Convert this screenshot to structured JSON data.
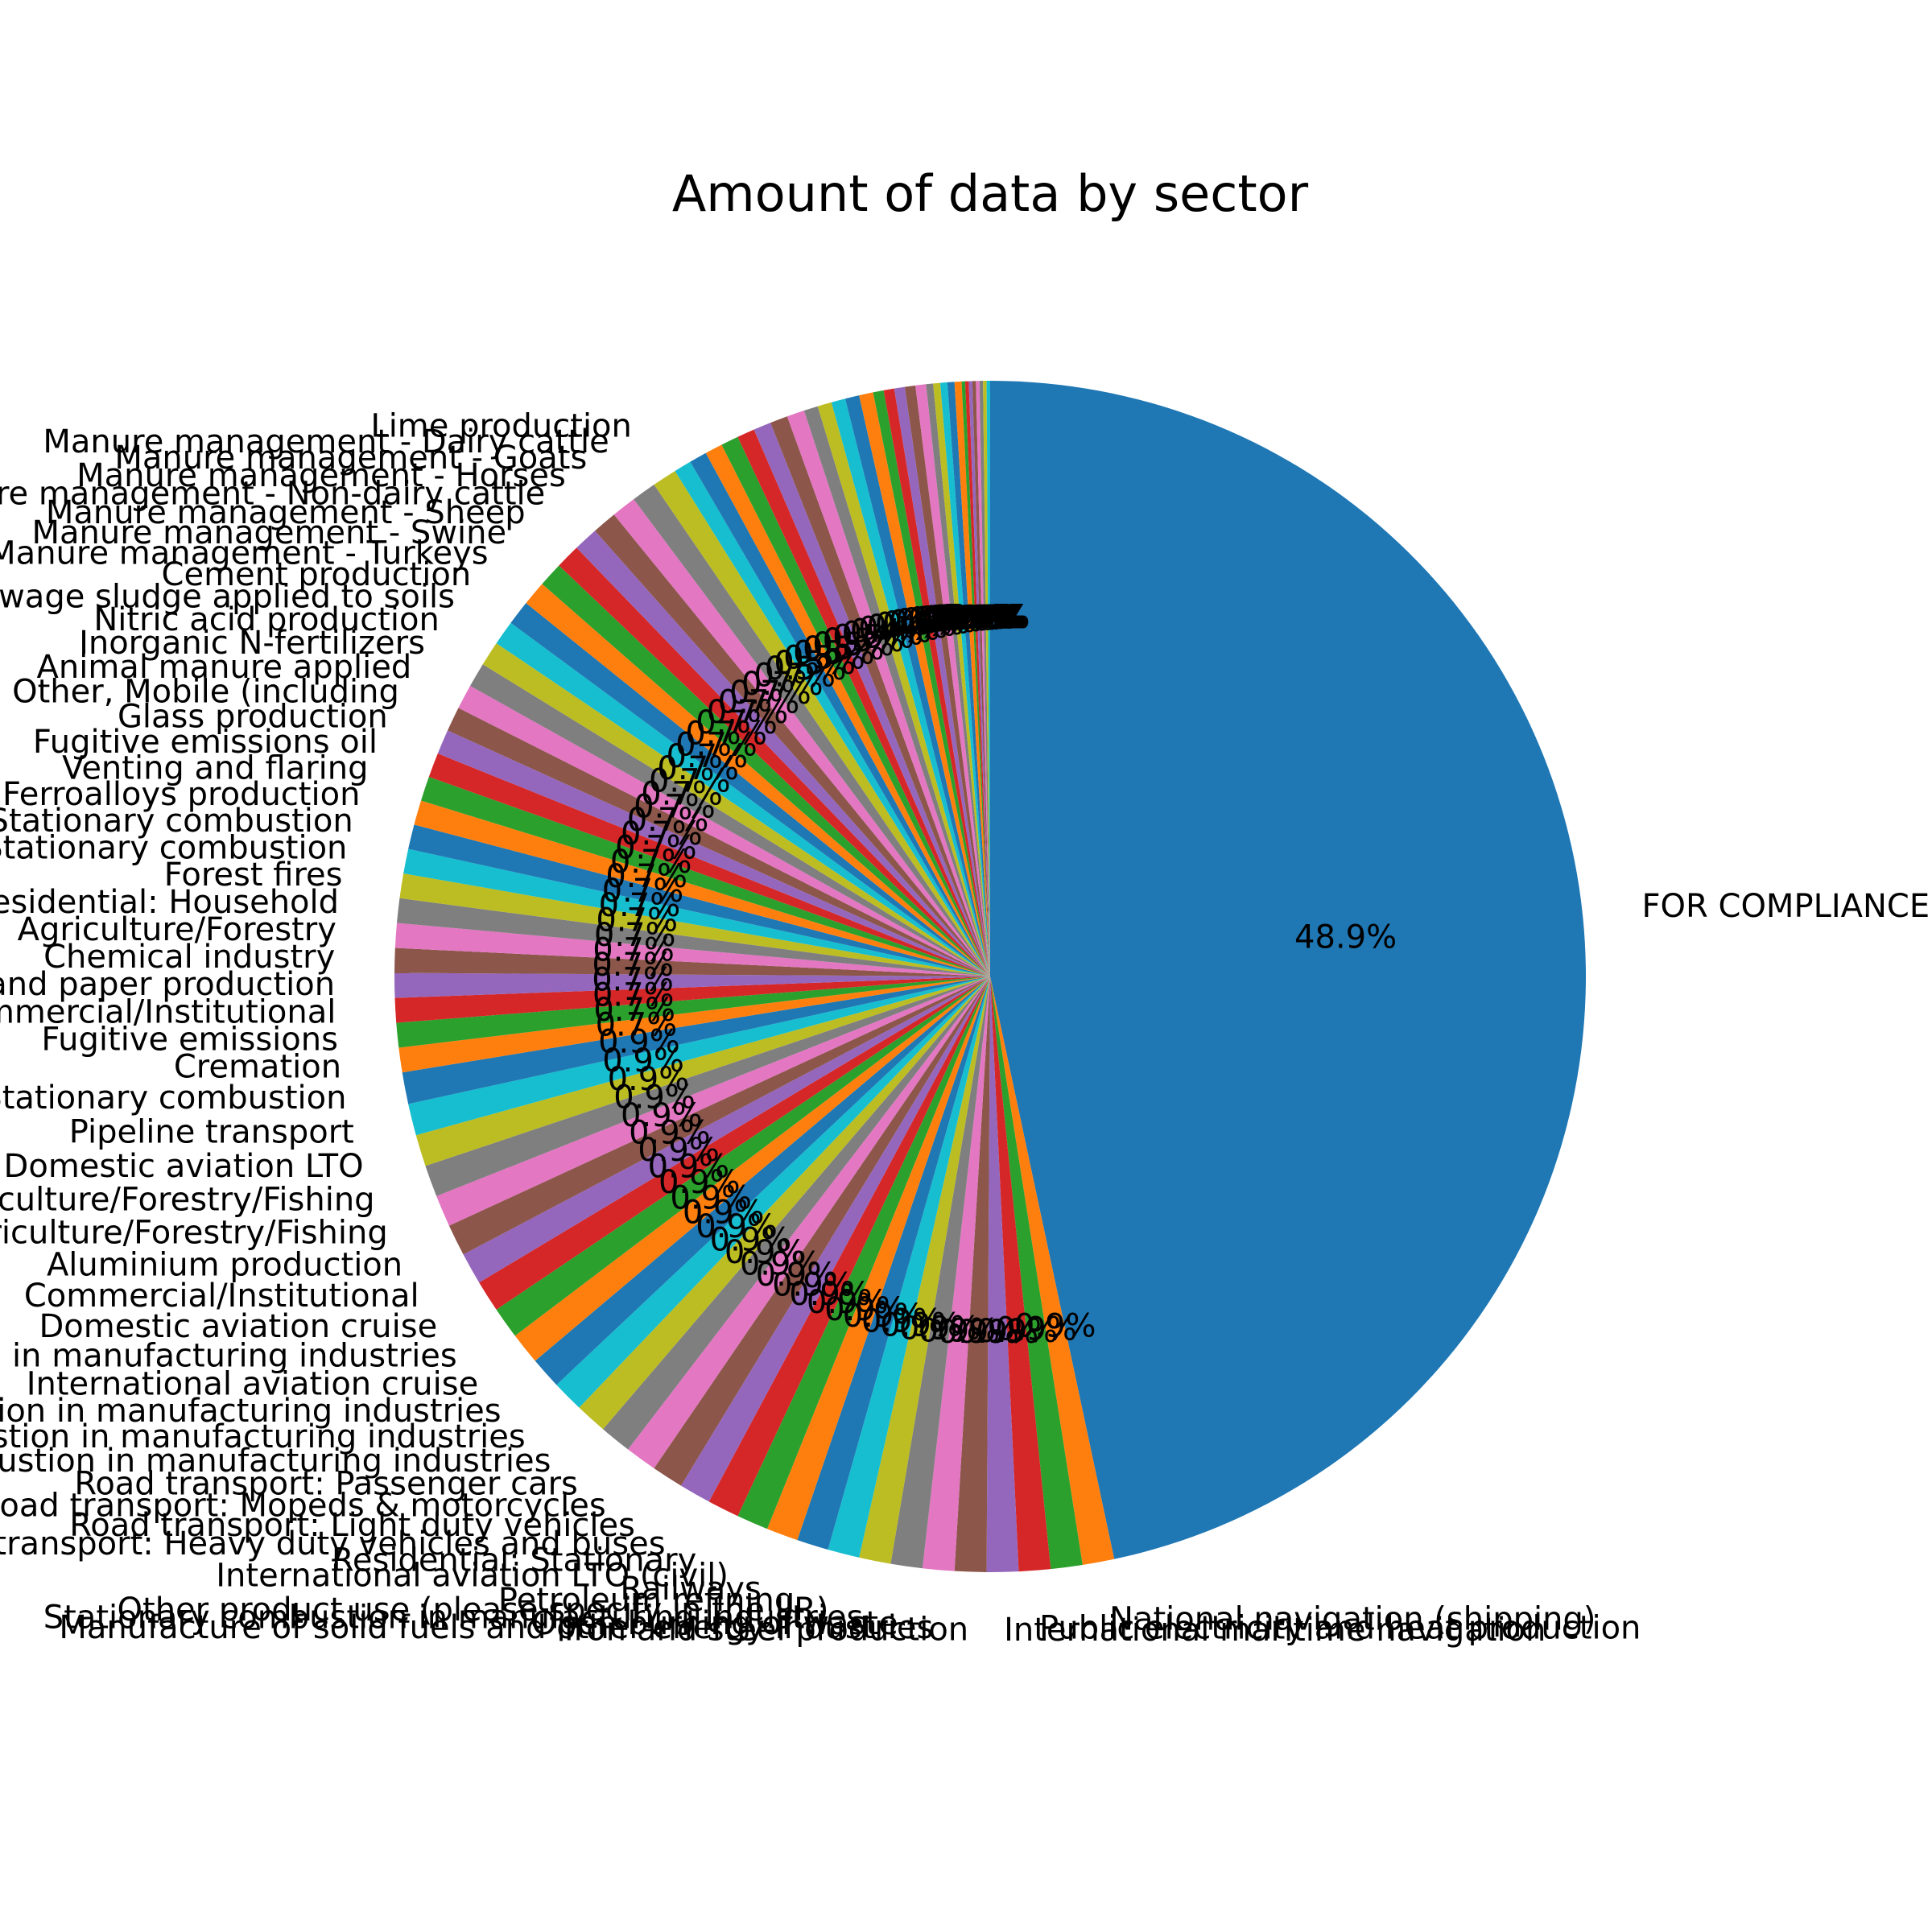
{
  "chart_data": {
    "type": "pie",
    "title": "Amount of data by sector",
    "start_angle_deg": 90,
    "direction": "clockwise",
    "pct_format": "one-decimal",
    "colors": [
      "#1f77b4",
      "#ff7f0e",
      "#2ca02c",
      "#d62728",
      "#9467bd",
      "#8c564b",
      "#e377c2",
      "#7f7f7f",
      "#bcbd22",
      "#17becf"
    ],
    "slices": [
      {
        "label": "FOR COMPLIANCE",
        "value": 48.9
      },
      {
        "label": "National navigation (shipping)",
        "value": 0.9
      },
      {
        "label": "",
        "value": 0.9
      },
      {
        "label": "Public electricity and heat production",
        "value": 0.9
      },
      {
        "label": "International maritime navigation",
        "value": 0.9
      },
      {
        "label": "Iron and steel production",
        "value": 0.9
      },
      {
        "label": "Manufacture of solid fuels and other energy industries",
        "value": 0.9
      },
      {
        "label": "Open burning of waste",
        "value": 0.9
      },
      {
        "label": "Stationary combustion in manufacturing industries",
        "value": 0.9
      },
      {
        "label": "Other product use (please specify in the IIR)",
        "value": 0.9
      },
      {
        "label": "Petroleum refining",
        "value": 0.9
      },
      {
        "label": "Railways",
        "value": 0.9
      },
      {
        "label": "International aviation LTO (civil)",
        "value": 0.9
      },
      {
        "label": "Residential: Stationary",
        "value": 0.9
      },
      {
        "label": "Road transport: Heavy duty vehicles and buses",
        "value": 0.9
      },
      {
        "label": "Road transport: Light duty vehicles",
        "value": 0.9
      },
      {
        "label": "Road transport: Mopeds & motorcycles",
        "value": 0.9
      },
      {
        "label": "Road transport: Passenger cars",
        "value": 0.9
      },
      {
        "label": "Stationary combustion in manufacturing industries",
        "value": 0.9
      },
      {
        "label": "Stationary combustion in manufacturing industries",
        "value": 0.9
      },
      {
        "label": "Stationary combustion in manufacturing industries",
        "value": 0.9
      },
      {
        "label": "International aviation cruise",
        "value": 0.9
      },
      {
        "label": "Stationary combustion in manufacturing industries",
        "value": 0.9
      },
      {
        "label": "Domestic aviation cruise",
        "value": 0.9
      },
      {
        "label": "Commercial/Institutional",
        "value": 0.9
      },
      {
        "label": "Aluminium production",
        "value": 0.9
      },
      {
        "label": "Agriculture/Forestry/Fishing",
        "value": 0.9
      },
      {
        "label": "Agriculture/Forestry/Fishing",
        "value": 0.9
      },
      {
        "label": "Domestic aviation LTO",
        "value": 0.9
      },
      {
        "label": "Pipeline transport",
        "value": 0.9
      },
      {
        "label": "Stationary combustion",
        "value": 0.9
      },
      {
        "label": "Cremation",
        "value": 0.7
      },
      {
        "label": "Fugitive emissions",
        "value": 0.7
      },
      {
        "label": "Commercial/Institutional",
        "value": 0.7
      },
      {
        "label": "Pulp and paper production",
        "value": 0.7
      },
      {
        "label": "Chemical industry",
        "value": 0.7
      },
      {
        "label": "Agriculture/Forestry",
        "value": 0.7
      },
      {
        "label": "Residential: Household",
        "value": 0.7
      },
      {
        "label": "Forest fires",
        "value": 0.7
      },
      {
        "label": "Stationary combustion",
        "value": 0.7
      },
      {
        "label": "Stationary combustion",
        "value": 0.7
      },
      {
        "label": "Ferroalloys production",
        "value": 0.7
      },
      {
        "label": "Venting and flaring",
        "value": 0.7
      },
      {
        "label": "Fugitive emissions oil",
        "value": 0.7
      },
      {
        "label": "Glass production",
        "value": 0.7
      },
      {
        "label": "Other, Mobile (including",
        "value": 0.7
      },
      {
        "label": "Animal manure applied",
        "value": 0.7
      },
      {
        "label": "Inorganic N-fertilizers",
        "value": 0.7
      },
      {
        "label": "Nitric acid production",
        "value": 0.7
      },
      {
        "label": "Sewage sludge applied to soils",
        "value": 0.7
      },
      {
        "label": "Cement production",
        "value": 0.7
      },
      {
        "label": "Manure management - Turkeys",
        "value": 0.7
      },
      {
        "label": "Manure management - Swine",
        "value": 0.7
      },
      {
        "label": "Manure management - Sheep",
        "value": 0.7
      },
      {
        "label": "Manure management - Non-dairy cattle",
        "value": 0.7
      },
      {
        "label": "Manure management - Horses",
        "value": 0.7
      },
      {
        "label": "Manure management - Goats",
        "value": 0.7
      },
      {
        "label": "Manure management - Dairy cattle",
        "value": 0.7
      },
      {
        "label": "Lime production",
        "value": 0.7
      },
      {
        "label": "",
        "value": 0.5
      },
      {
        "label": "",
        "value": 0.5
      },
      {
        "label": "",
        "value": 0.5
      },
      {
        "label": "",
        "value": 0.5
      },
      {
        "label": "",
        "value": 0.5
      },
      {
        "label": "",
        "value": 0.5
      },
      {
        "label": "",
        "value": 0.5
      },
      {
        "label": "",
        "value": 0.5
      },
      {
        "label": "",
        "value": 0.4
      },
      {
        "label": "",
        "value": 0.4
      },
      {
        "label": "",
        "value": 0.4
      },
      {
        "label": "",
        "value": 0.4
      },
      {
        "label": "",
        "value": 0.4
      },
      {
        "label": "",
        "value": 0.3
      },
      {
        "label": "",
        "value": 0.3
      },
      {
        "label": "",
        "value": 0.3
      },
      {
        "label": "",
        "value": 0.3
      },
      {
        "label": "",
        "value": 0.3
      },
      {
        "label": "",
        "value": 0.2
      },
      {
        "label": "",
        "value": 0.2
      },
      {
        "label": "",
        "value": 0.2
      },
      {
        "label": "",
        "value": 0.2
      },
      {
        "label": "",
        "value": 0.2
      },
      {
        "label": "",
        "value": 0.1
      },
      {
        "label": "",
        "value": 0.1
      },
      {
        "label": "",
        "value": 0.1
      },
      {
        "label": "",
        "value": 0.1
      },
      {
        "label": "",
        "value": 0.1
      },
      {
        "label": "",
        "value": 0.1
      },
      {
        "label": "",
        "value": 0.1
      },
      {
        "label": "",
        "value": 0.1
      }
    ]
  }
}
